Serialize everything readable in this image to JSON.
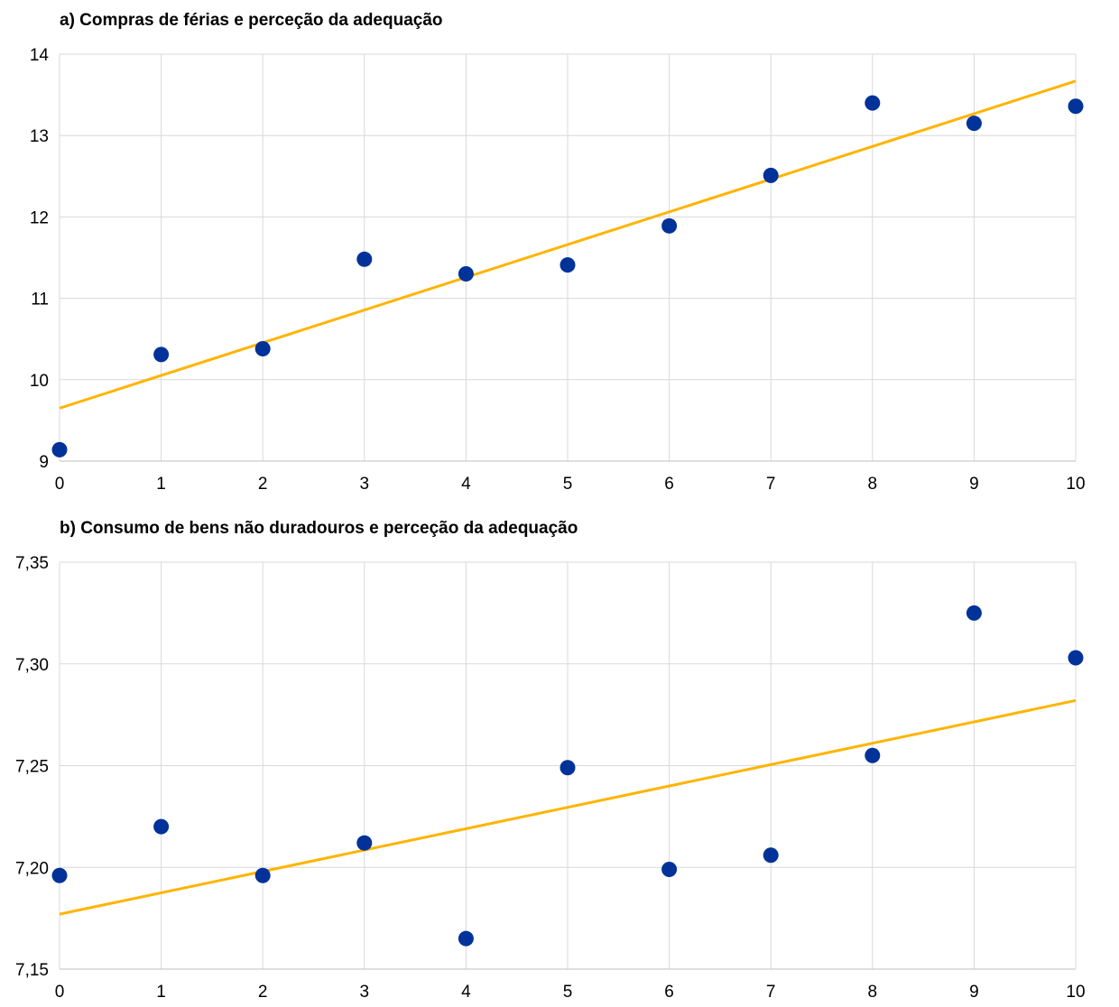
{
  "chart_data": [
    {
      "type": "scatter",
      "title": "a) Compras de férias e perceção da adequação",
      "xlabel": "",
      "ylabel": "",
      "xlim": [
        0,
        10
      ],
      "ylim": [
        9,
        14
      ],
      "x_ticks": [
        "0",
        "1",
        "2",
        "3",
        "4",
        "5",
        "6",
        "7",
        "8",
        "9",
        "10"
      ],
      "y_ticks": [
        "9",
        "10",
        "11",
        "12",
        "13",
        "14"
      ],
      "grid": true,
      "point_color": "#003299",
      "line_color": "#FFB400",
      "points": [
        {
          "x": 0,
          "y": 9.14
        },
        {
          "x": 1,
          "y": 10.31
        },
        {
          "x": 2,
          "y": 10.38
        },
        {
          "x": 3,
          "y": 11.48
        },
        {
          "x": 4,
          "y": 11.3
        },
        {
          "x": 5,
          "y": 11.41
        },
        {
          "x": 6,
          "y": 11.89
        },
        {
          "x": 7,
          "y": 12.51
        },
        {
          "x": 8,
          "y": 13.4
        },
        {
          "x": 9,
          "y": 13.15
        },
        {
          "x": 10,
          "y": 13.36
        }
      ],
      "trendline": {
        "x": [
          0,
          10
        ],
        "y": [
          9.65,
          13.67
        ]
      }
    },
    {
      "type": "scatter",
      "title": "b) Consumo de bens não duradouros e perceção da adequação",
      "xlabel": "",
      "ylabel": "",
      "xlim": [
        0,
        10
      ],
      "ylim": [
        7.15,
        7.35
      ],
      "x_ticks": [
        "0",
        "1",
        "2",
        "3",
        "4",
        "5",
        "6",
        "7",
        "8",
        "9",
        "10"
      ],
      "y_ticks": [
        "7,15",
        "7,20",
        "7,25",
        "7,30",
        "7,35"
      ],
      "grid": true,
      "point_color": "#003299",
      "line_color": "#FFB400",
      "points": [
        {
          "x": 0,
          "y": 7.196
        },
        {
          "x": 1,
          "y": 7.22
        },
        {
          "x": 2,
          "y": 7.196
        },
        {
          "x": 3,
          "y": 7.212
        },
        {
          "x": 4,
          "y": 7.165
        },
        {
          "x": 5,
          "y": 7.249
        },
        {
          "x": 6,
          "y": 7.199
        },
        {
          "x": 7,
          "y": 7.206
        },
        {
          "x": 8,
          "y": 7.255
        },
        {
          "x": 9,
          "y": 7.325
        },
        {
          "x": 10,
          "y": 7.303
        }
      ],
      "trendline": {
        "x": [
          0,
          10
        ],
        "y": [
          7.177,
          7.282
        ]
      }
    }
  ]
}
